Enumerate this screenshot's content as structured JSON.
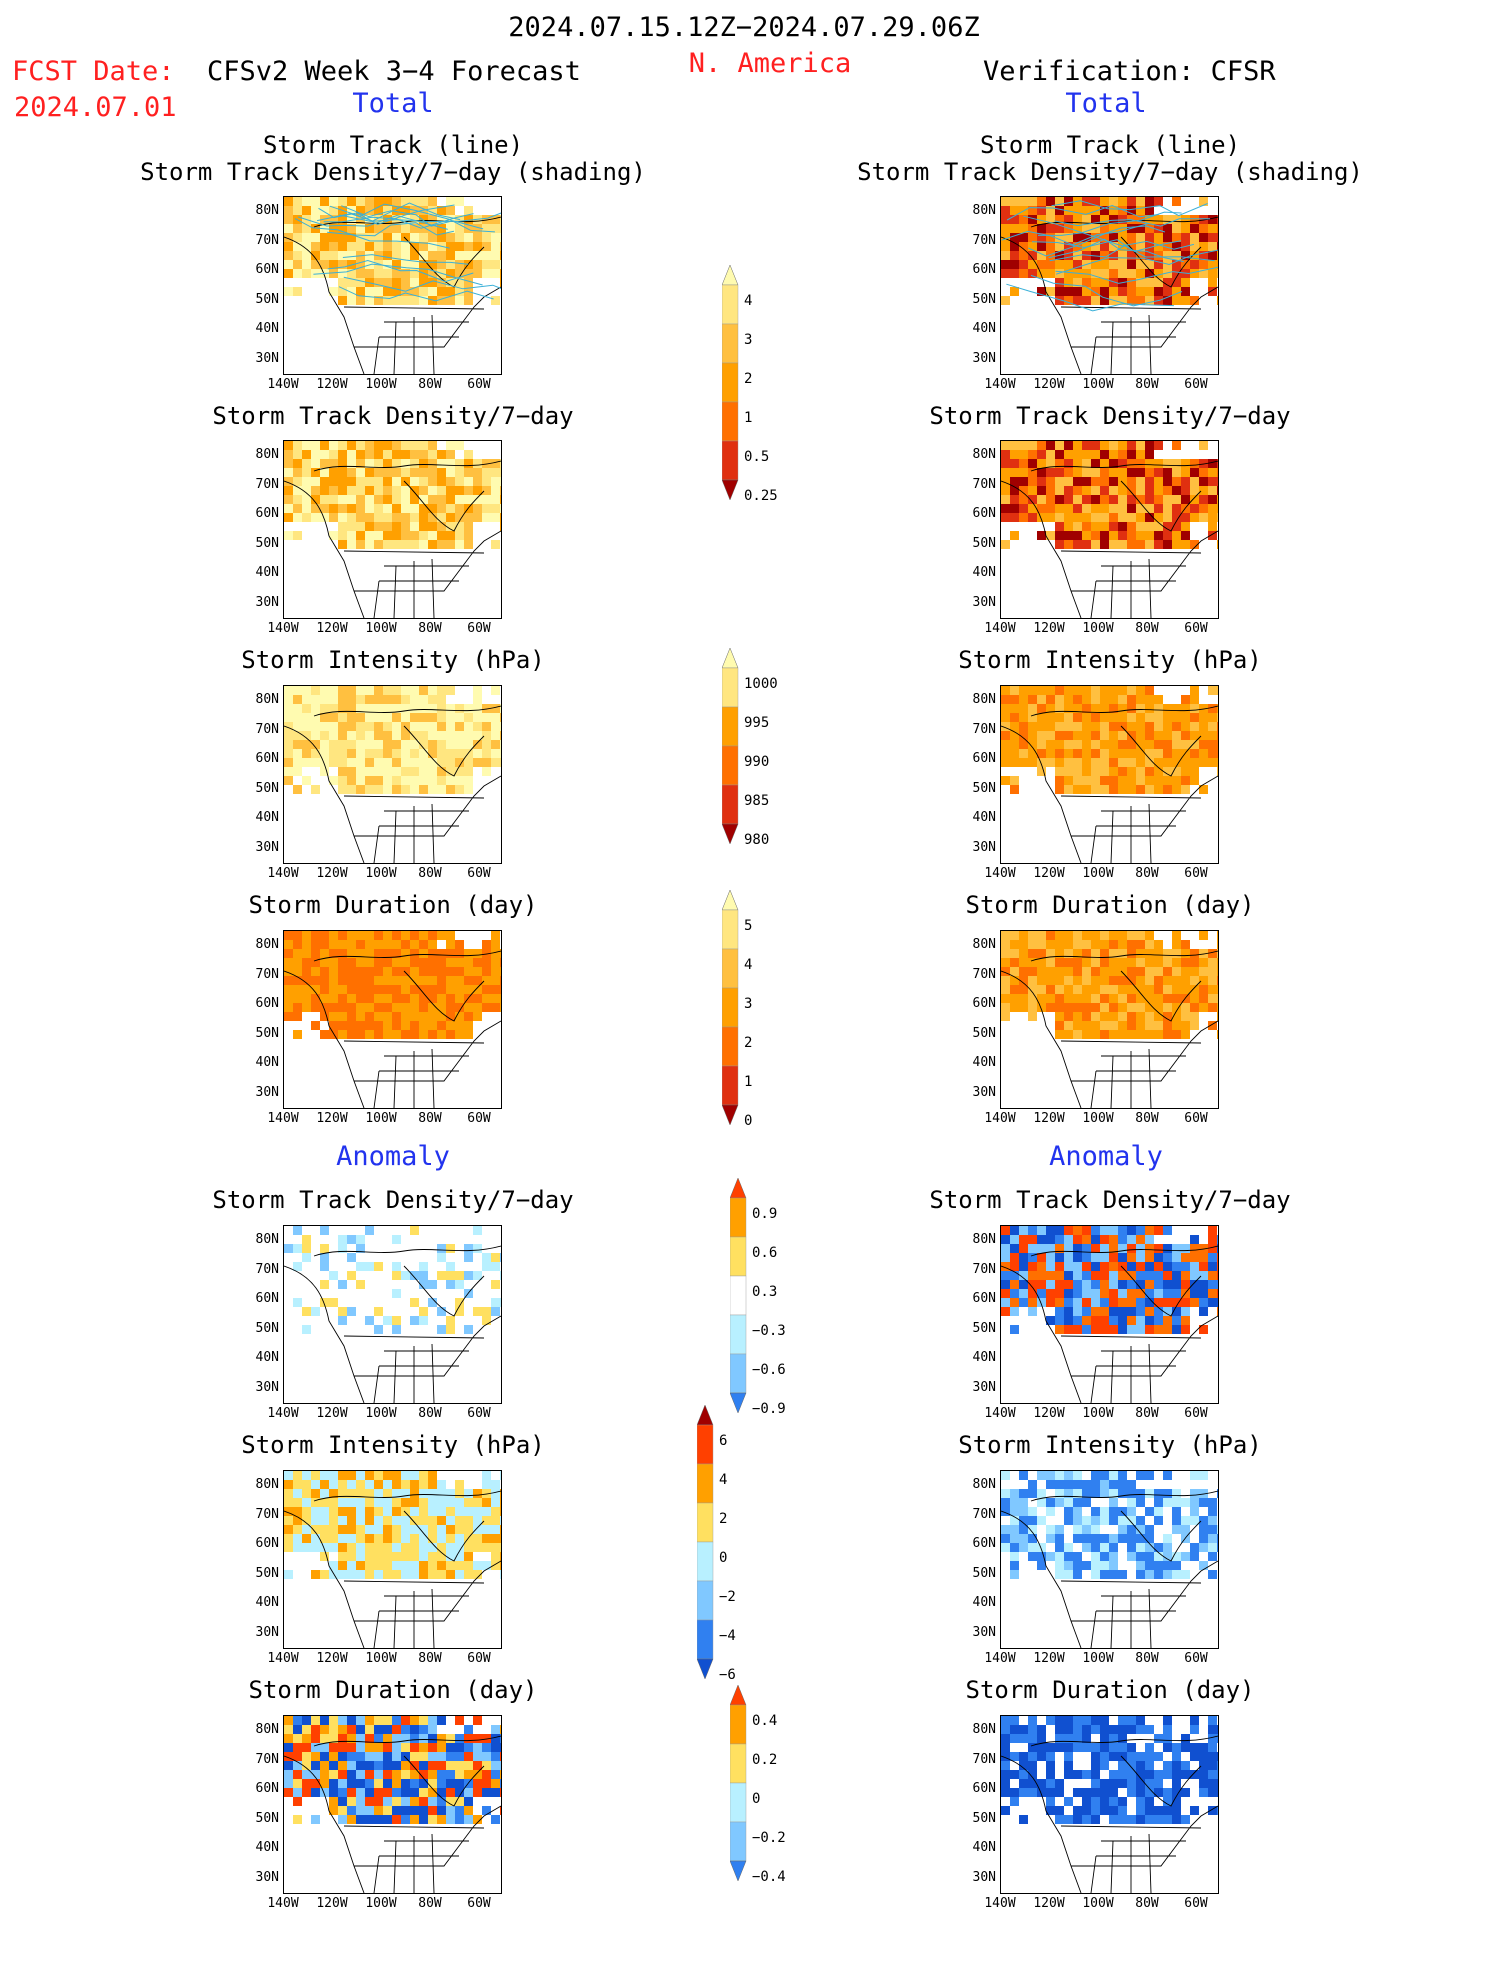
{
  "header": {
    "period": "2024.07.15.12Z−2024.07.29.06Z",
    "fcst_date_label": "FCST Date:",
    "fcst_date_value": "2024.07.01",
    "model_title": "CFSv2 Week 3−4 Forecast",
    "region": "N. America",
    "verification_title": "Verification: CFSR",
    "left_section_total": "Total",
    "right_section_total": "Total",
    "left_section_anomaly": "Anomaly",
    "right_section_anomaly": "Anomaly"
  },
  "panel_titles": {
    "track_line": "Storm Track (line)",
    "track_density_shading": "Storm Track Density/7−day (shading)",
    "track_density": "Storm Track Density/7−day",
    "intensity": "Storm Intensity (hPa)",
    "duration": "Storm Duration (day)"
  },
  "axes": {
    "lat_ticks": [
      "80N",
      "70N",
      "60N",
      "50N",
      "40N",
      "30N"
    ],
    "lon_ticks": [
      "140W",
      "120W",
      "100W",
      "80W",
      "60W"
    ]
  },
  "colorbars": {
    "density_total": [
      "4",
      "3",
      "2",
      "1",
      "0.5",
      "0.25"
    ],
    "intensity_total": [
      "1000",
      "995",
      "990",
      "985",
      "980"
    ],
    "duration_total": [
      "5",
      "4",
      "3",
      "2",
      "1",
      "0"
    ],
    "density_anom": [
      "0.9",
      "0.6",
      "0.3",
      "−0.3",
      "−0.6",
      "−0.9"
    ],
    "intensity_anom": [
      "6",
      "4",
      "2",
      "0",
      "−2",
      "−4",
      "−6"
    ],
    "duration_anom": [
      "0.4",
      "0.2",
      "0",
      "−0.2",
      "−0.4"
    ]
  },
  "colors": {
    "title_red": "#ff2020",
    "title_blue": "#2233ee",
    "track_line": "#3ab0d8"
  }
}
